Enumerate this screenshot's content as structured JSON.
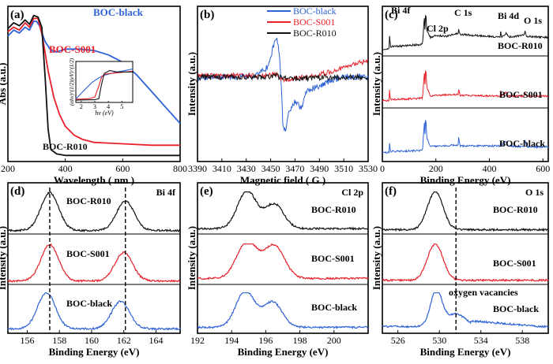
{
  "figure": {
    "colors": {
      "black": "#111111",
      "red": "#e8202a",
      "blue": "#2e62d6"
    }
  },
  "chart_data": [
    {
      "id": "a",
      "type": "line",
      "panel_label": "(a)",
      "xlabel": "Wavelength ( nm )",
      "ylabel": "Abs (a.u.)",
      "xlim": [
        200,
        800
      ],
      "ylim": [
        0,
        1.1
      ],
      "xticks": [
        200,
        400,
        600,
        800
      ],
      "series": [
        {
          "name": "BOC-black",
          "color": "#2e62d6",
          "points": [
            [
              200,
              0.84
            ],
            [
              220,
              0.88
            ],
            [
              240,
              0.86
            ],
            [
              260,
              0.9
            ],
            [
              275,
              0.88
            ],
            [
              290,
              0.94
            ],
            [
              300,
              0.94
            ],
            [
              310,
              0.91
            ],
            [
              330,
              0.8
            ],
            [
              350,
              0.74
            ],
            [
              370,
              0.73
            ],
            [
              400,
              0.75
            ],
            [
              450,
              0.75
            ],
            [
              500,
              0.74
            ],
            [
              550,
              0.71
            ],
            [
              600,
              0.66
            ],
            [
              650,
              0.57
            ],
            [
              700,
              0.46
            ],
            [
              750,
              0.35
            ],
            [
              800,
              0.24
            ]
          ]
        },
        {
          "name": "BOC-S001",
          "color": "#e8202a",
          "points": [
            [
              200,
              0.87
            ],
            [
              220,
              0.9
            ],
            [
              240,
              0.88
            ],
            [
              260,
              0.93
            ],
            [
              275,
              0.9
            ],
            [
              290,
              0.96
            ],
            [
              305,
              0.96
            ],
            [
              320,
              0.84
            ],
            [
              340,
              0.6
            ],
            [
              360,
              0.42
            ],
            [
              380,
              0.3
            ],
            [
              400,
              0.22
            ],
            [
              430,
              0.16
            ],
            [
              460,
              0.13
            ],
            [
              500,
              0.11
            ],
            [
              600,
              0.1
            ],
            [
              700,
              0.09
            ],
            [
              800,
              0.09
            ]
          ]
        },
        {
          "name": "BOC-R010",
          "color": "#111111",
          "points": [
            [
              200,
              0.89
            ],
            [
              220,
              0.93
            ],
            [
              240,
              0.91
            ],
            [
              260,
              0.95
            ],
            [
              275,
              0.92
            ],
            [
              290,
              0.98
            ],
            [
              305,
              0.97
            ],
            [
              318,
              0.9
            ],
            [
              330,
              0.55
            ],
            [
              340,
              0.2
            ],
            [
              350,
              0.06
            ],
            [
              370,
              0.03
            ],
            [
              400,
              0.02
            ],
            [
              500,
              0.02
            ],
            [
              600,
              0.02
            ],
            [
              700,
              0.02
            ],
            [
              800,
              0.02
            ]
          ]
        }
      ],
      "labels": {
        "black": "BOC-black",
        "s001": "BOC-S001",
        "r010": "BOC-R010"
      },
      "inset": {
        "ylabel": "(αhν)^(1/2)(eV)^(1/2)",
        "xlabel": "hν (eV)",
        "xticks": [
          2,
          3,
          4,
          5
        ],
        "xlim": [
          1.6,
          5.8
        ],
        "ylim": [
          0,
          1
        ],
        "series": [
          {
            "name": "BOC-black",
            "color": "#2e62d6",
            "points": [
              [
                1.6,
                0.05
              ],
              [
                2.2,
                0.28
              ],
              [
                2.8,
                0.5
              ],
              [
                3.3,
                0.62
              ],
              [
                3.5,
                0.66
              ],
              [
                3.8,
                0.7
              ],
              [
                4.4,
                0.76
              ],
              [
                5.8,
                0.86
              ]
            ]
          },
          {
            "name": "BOC-S001",
            "color": "#e8202a",
            "points": [
              [
                1.6,
                0.04
              ],
              [
                2.6,
                0.06
              ],
              [
                3.0,
                0.1
              ],
              [
                3.3,
                0.4
              ],
              [
                3.5,
                0.64
              ],
              [
                3.7,
                0.72
              ],
              [
                4.2,
                0.74
              ],
              [
                5.8,
                0.8
              ]
            ]
          },
          {
            "name": "BOC-R010",
            "color": "#111111",
            "points": [
              [
                1.6,
                0.02
              ],
              [
                3.0,
                0.03
              ],
              [
                3.3,
                0.06
              ],
              [
                3.5,
                0.45
              ],
              [
                3.7,
                0.74
              ],
              [
                4.1,
                0.82
              ],
              [
                4.6,
                0.78
              ],
              [
                5.8,
                0.78
              ]
            ]
          }
        ]
      }
    },
    {
      "id": "b",
      "type": "line",
      "panel_label": "(b)",
      "xlabel": "Magnetic field ( G )",
      "ylabel": "Intensity (a.u.)",
      "xlim": [
        3390,
        3530
      ],
      "xticks": [
        3390,
        3410,
        3430,
        3450,
        3470,
        3490,
        3510,
        3530
      ],
      "legend": [
        "BOC-black",
        "BOC-S001",
        "BOC-R010"
      ],
      "series": [
        {
          "name": "BOC-black",
          "color": "#2e62d6",
          "points": [
            [
              3390,
              0
            ],
            [
              3430,
              0.01
            ],
            [
              3440,
              0.05
            ],
            [
              3448,
              0.2
            ],
            [
              3452,
              0.55
            ],
            [
              3455,
              0.75
            ],
            [
              3457,
              0.45
            ],
            [
              3459,
              -0.2
            ],
            [
              3460,
              -0.85
            ],
            [
              3462,
              -0.95
            ],
            [
              3465,
              -0.6
            ],
            [
              3470,
              -0.45
            ],
            [
              3475,
              -0.55
            ],
            [
              3480,
              -0.25
            ],
            [
              3490,
              -0.15
            ],
            [
              3500,
              -0.05
            ],
            [
              3510,
              0
            ],
            [
              3530,
              0
            ]
          ]
        },
        {
          "name": "BOC-S001",
          "color": "#e8202a",
          "points": [
            [
              3390,
              0.02
            ],
            [
              3440,
              0.03
            ],
            [
              3455,
              0.06
            ],
            [
              3460,
              -0.05
            ],
            [
              3480,
              0.01
            ],
            [
              3500,
              0.1
            ],
            [
              3510,
              0.18
            ],
            [
              3520,
              0.25
            ],
            [
              3530,
              0.3
            ]
          ]
        },
        {
          "name": "BOC-R010",
          "color": "#111111",
          "points": [
            [
              3390,
              0
            ],
            [
              3440,
              0
            ],
            [
              3455,
              0.02
            ],
            [
              3460,
              -0.03
            ],
            [
              3500,
              0
            ],
            [
              3530,
              0
            ]
          ]
        }
      ]
    },
    {
      "id": "c",
      "type": "line",
      "panel_label": "(c)",
      "xlabel": "Binding Energy (eV)",
      "ylabel": "Intensity (a.u.)",
      "xlim": [
        0,
        620
      ],
      "xticks": [
        0,
        200,
        400,
        600
      ],
      "annotations": [
        "Bi 4f",
        "Cl 2p",
        "C 1s",
        "Bi 4d",
        "O 1s"
      ],
      "series": [
        {
          "name": "BOC-R010",
          "color": "#111111",
          "points": [
            [
              0,
              0.1
            ],
            [
              25,
              0.1
            ],
            [
              27,
              0.4
            ],
            [
              30,
              0.15
            ],
            [
              150,
              0.2
            ],
            [
              157,
              0.8
            ],
            [
              159,
              0.5
            ],
            [
              162,
              0.95
            ],
            [
              166,
              0.5
            ],
            [
              180,
              0.35
            ],
            [
              200,
              0.4
            ],
            [
              240,
              0.38
            ],
            [
              284,
              0.45
            ],
            [
              285,
              0.55
            ],
            [
              290,
              0.42
            ],
            [
              440,
              0.36
            ],
            [
              442,
              0.48
            ],
            [
              446,
              0.36
            ],
            [
              464,
              0.45
            ],
            [
              470,
              0.36
            ],
            [
              530,
              0.4
            ],
            [
              532,
              0.5
            ],
            [
              540,
              0.38
            ],
            [
              620,
              0.35
            ]
          ]
        },
        {
          "name": "BOC-S001",
          "color": "#e8202a",
          "points": [
            [
              0,
              0.1
            ],
            [
              25,
              0.1
            ],
            [
              27,
              0.35
            ],
            [
              30,
              0.12
            ],
            [
              150,
              0.15
            ],
            [
              157,
              0.75
            ],
            [
              159,
              0.45
            ],
            [
              162,
              0.9
            ],
            [
              166,
              0.4
            ],
            [
              180,
              0.2
            ],
            [
              200,
              0.22
            ],
            [
              284,
              0.24
            ],
            [
              285,
              0.35
            ],
            [
              290,
              0.22
            ],
            [
              440,
              0.2
            ],
            [
              442,
              0.32
            ],
            [
              446,
              0.2
            ],
            [
              464,
              0.3
            ],
            [
              470,
              0.2
            ],
            [
              530,
              0.2
            ],
            [
              532,
              0.3
            ],
            [
              540,
              0.2
            ],
            [
              620,
              0.2
            ]
          ]
        },
        {
          "name": "BOC-black",
          "color": "#2e62d6",
          "points": [
            [
              0,
              0.08
            ],
            [
              25,
              0.08
            ],
            [
              27,
              0.3
            ],
            [
              30,
              0.1
            ],
            [
              150,
              0.12
            ],
            [
              157,
              0.75
            ],
            [
              159,
              0.45
            ],
            [
              162,
              0.9
            ],
            [
              166,
              0.4
            ],
            [
              180,
              0.2
            ],
            [
              200,
              0.22
            ],
            [
              284,
              0.24
            ],
            [
              285,
              0.42
            ],
            [
              290,
              0.22
            ],
            [
              440,
              0.22
            ],
            [
              442,
              0.34
            ],
            [
              446,
              0.22
            ],
            [
              464,
              0.33
            ],
            [
              470,
              0.22
            ],
            [
              530,
              0.2
            ],
            [
              532,
              0.38
            ],
            [
              540,
              0.2
            ],
            [
              620,
              0.2
            ]
          ]
        }
      ]
    },
    {
      "id": "d",
      "type": "line",
      "panel_label": "(d)",
      "corner_label": "Bi 4f",
      "xlabel": "Binding Energy (eV)",
      "ylabel": "Intensity (a.u.)",
      "xlim": [
        154.8,
        165.5
      ],
      "xticks": [
        156,
        158,
        160,
        162,
        164
      ],
      "dashed_lines": [
        157.4,
        162.1
      ],
      "series": [
        {
          "name": "BOC-R010",
          "color": "#111111",
          "peaks": [
            [
              157.4,
              1.0,
              0.55
            ],
            [
              162.1,
              0.78,
              0.55
            ]
          ],
          "baseline": 0.03
        },
        {
          "name": "BOC-S001",
          "color": "#e8202a",
          "peaks": [
            [
              157.4,
              1.0,
              0.55
            ],
            [
              162.0,
              0.78,
              0.55
            ]
          ],
          "baseline": 0.03
        },
        {
          "name": "BOC-black",
          "color": "#2e62d6",
          "peaks": [
            [
              157.2,
              1.0,
              0.55
            ],
            [
              161.8,
              0.76,
              0.55
            ]
          ],
          "baseline": 0.06
        }
      ]
    },
    {
      "id": "e",
      "type": "line",
      "panel_label": "(e)",
      "corner_label": "Cl 2p",
      "xlabel": "Binding Energy (eV)",
      "ylabel": "Intensity (a.u.)",
      "xlim": [
        192,
        202
      ],
      "xticks": [
        192,
        194,
        196,
        198,
        200
      ],
      "series": [
        {
          "name": "BOC-R010",
          "color": "#111111",
          "peaks": [
            [
              194.9,
              1.0,
              0.55
            ],
            [
              196.5,
              0.65,
              0.55
            ]
          ],
          "baseline": 0.08
        },
        {
          "name": "BOC-S001",
          "color": "#e8202a",
          "peaks": [
            [
              194.9,
              1.0,
              0.6
            ],
            [
              196.5,
              0.9,
              0.6
            ]
          ],
          "baseline": 0.1
        },
        {
          "name": "BOC-black",
          "color": "#2e62d6",
          "peaks": [
            [
              194.8,
              1.0,
              0.55
            ],
            [
              196.4,
              0.7,
              0.55
            ]
          ],
          "baseline": 0.1
        }
      ]
    },
    {
      "id": "f",
      "type": "line",
      "panel_label": "(f)",
      "corner_label": "O 1s",
      "xlabel": "Binding Energy (eV)",
      "ylabel": "Intensity (a.u.)",
      "xlim": [
        524.5,
        540.5
      ],
      "xticks": [
        526,
        530,
        534,
        538
      ],
      "dashed_lines": [
        531.6
      ],
      "annotation": "oxygen vacancies",
      "series": [
        {
          "name": "BOC-R010",
          "color": "#111111",
          "peaks": [
            [
              529.6,
              1.0,
              0.75
            ]
          ],
          "baseline": 0.05
        },
        {
          "name": "BOC-S001",
          "color": "#e8202a",
          "peaks": [
            [
              529.6,
              1.0,
              0.75
            ]
          ],
          "baseline": 0.05
        },
        {
          "name": "BOC-black",
          "color": "#2e62d6",
          "peaks": [
            [
              529.7,
              1.0,
              0.55
            ],
            [
              531.6,
              0.35,
              0.9
            ]
          ],
          "baseline": 0.12,
          "tail": [
            [
              533.0,
              0.28
            ],
            [
              540.5,
              0.1
            ]
          ]
        }
      ]
    }
  ]
}
